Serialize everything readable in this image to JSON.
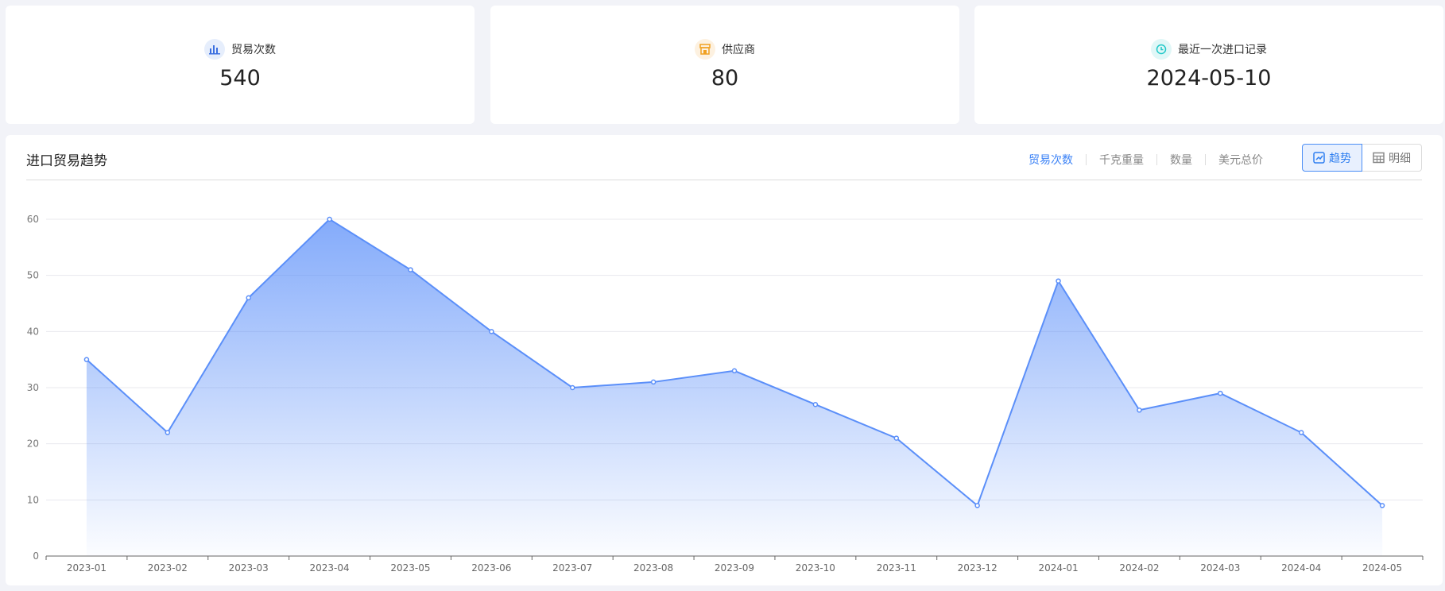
{
  "stats": [
    {
      "label": "贸易次数",
      "value": "540",
      "icon": "bar-chart-icon",
      "color": "#3b6fe0",
      "bg": "#e6eefc"
    },
    {
      "label": "供应商",
      "value": "80",
      "icon": "store-icon",
      "color": "#f0a020",
      "bg": "#fdf1e0"
    },
    {
      "label": "最近一次进口记录",
      "value": "2024-05-10",
      "icon": "clock-icon",
      "color": "#1fc8c8",
      "bg": "#e0f7f7"
    }
  ],
  "trend": {
    "title": "进口贸易趋势",
    "metrics": [
      "贸易次数",
      "千克重量",
      "数量",
      "美元总价"
    ],
    "active_metric": "贸易次数",
    "view_toggle": {
      "trend": "趋势",
      "detail": "明细",
      "active": "趋势"
    }
  },
  "colors": {
    "accent": "#3b82f6",
    "line": "#5b8ff9"
  },
  "chart_data": {
    "type": "area",
    "categories": [
      "2023-01",
      "2023-02",
      "2023-03",
      "2023-04",
      "2023-05",
      "2023-06",
      "2023-07",
      "2023-08",
      "2023-09",
      "2023-10",
      "2023-11",
      "2023-12",
      "2024-01",
      "2024-02",
      "2024-03",
      "2024-04",
      "2024-05"
    ],
    "values": [
      35,
      22,
      46,
      60,
      51,
      40,
      30,
      31,
      33,
      27,
      21,
      9,
      49,
      26,
      29,
      22,
      9
    ],
    "ylim": [
      0,
      60
    ],
    "yticks": [
      0,
      10,
      20,
      30,
      40,
      50,
      60
    ],
    "grid": true
  }
}
